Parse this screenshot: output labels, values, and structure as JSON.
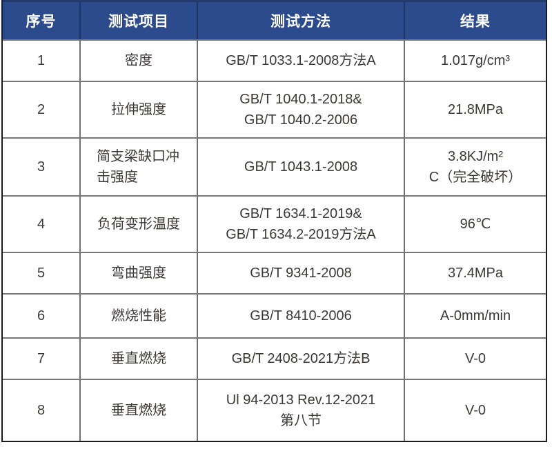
{
  "theme": {
    "header_bg": "#2b4b8c",
    "header_text": "#ffffff",
    "body_text": "#3c3835",
    "outer_border": "#1a1a1a",
    "grid_line": "#6f6f6f"
  },
  "table": {
    "headers": [
      "序号",
      "测试项目",
      "测试方法",
      "结果"
    ],
    "rows": [
      {
        "no": "1",
        "item": "密度",
        "method": [
          "GB/T 1033.1-2008方法A"
        ],
        "result": [
          "1.017g/cm³"
        ]
      },
      {
        "no": "2",
        "item": "拉伸强度",
        "method": [
          "GB/T 1040.1-2018&",
          "GB/T 1040.2-2006"
        ],
        "result": [
          "21.8MPa"
        ]
      },
      {
        "no": "3",
        "item": "简支梁缺口冲击强度",
        "method": [
          "GB/T 1043.1-2008"
        ],
        "result": [
          "3.8KJ/m²",
          "C（完全破坏）"
        ]
      },
      {
        "no": "4",
        "item": "负荷变形温度",
        "method": [
          "GB/T 1634.1-2019&",
          "GB/T 1634.2-2019方法A"
        ],
        "result": [
          "96℃"
        ]
      },
      {
        "no": "5",
        "item": "弯曲强度",
        "method": [
          "GB/T 9341-2008"
        ],
        "result": [
          "37.4MPa"
        ]
      },
      {
        "no": "6",
        "item": "燃烧性能",
        "method": [
          "GB/T 8410-2006"
        ],
        "result": [
          "A-0mm/min"
        ]
      },
      {
        "no": "7",
        "item": "垂直燃烧",
        "method": [
          "GB/T 2408-2021方法B"
        ],
        "result": [
          "V-0"
        ]
      },
      {
        "no": "8",
        "item": "垂直燃烧",
        "method": [
          "Ul 94-2013 Rev.12-2021",
          "第八节"
        ],
        "result": [
          "V-0"
        ]
      }
    ]
  }
}
